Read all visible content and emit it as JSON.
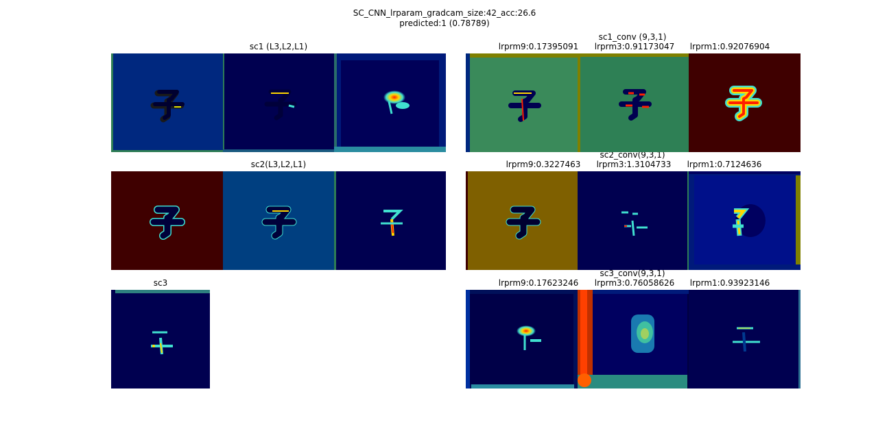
{
  "figure": {
    "title_line1": "SC_CNN_lrparam_gradcam_size:42_acc:26.6",
    "title_line2": "predicted:1 (0.78789)"
  },
  "rows": [
    {
      "left_title": "sc1 (L3,L2,L1)",
      "right_title": "sc1_conv (9,3,1)",
      "right_labels": [
        "lrprm9:0.17395091",
        "lrprm3:0.91173047",
        "lrprm1:0.92076904"
      ]
    },
    {
      "left_title": "sc2(L3,L2,L1)",
      "right_title": "sc2_conv(9,3,1)",
      "right_labels": [
        "lrprm9:0.3227463",
        "lrprm3:1.3104733",
        "lrprm1:0.7124636"
      ]
    },
    {
      "left_title": "sc3",
      "right_title": "sc3_conv(9,3,1)",
      "right_labels": [
        "lrprm9:0.17623246",
        "lrprm3:0.76058626",
        "lrprm1:0.93923146"
      ]
    }
  ],
  "colors": {
    "jet_dark_blue": "#000050",
    "jet_blue": "#00287f",
    "jet_mid_blue": "#003f80",
    "jet_green": "#2e8055",
    "jet_olive": "#7f6000",
    "jet_dark_red": "#3f0000",
    "jet_yellow": "#ffd700",
    "jet_red": "#ff2000",
    "jet_cyan": "#40e0d0"
  }
}
